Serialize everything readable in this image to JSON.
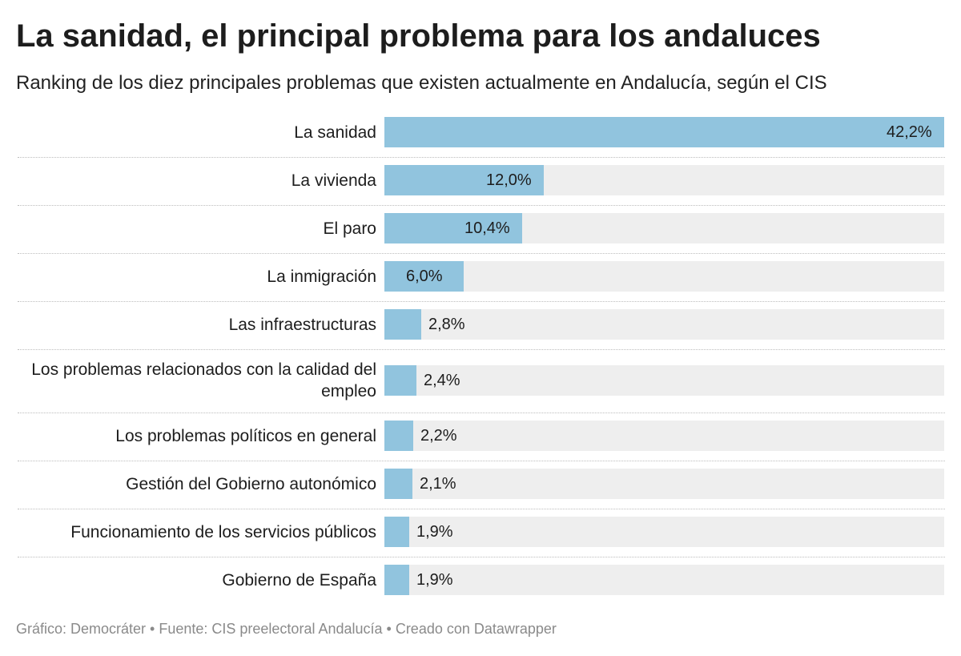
{
  "chart_data": {
    "type": "bar",
    "orientation": "horizontal",
    "title": "La sanidad, el principal problema para los andaluces",
    "subtitle": "Ranking de los diez principales problemas que existen actualmente en Andalucía, según el CIS",
    "categories": [
      "La sanidad",
      "La vivienda",
      "El paro",
      "La inmigración",
      "Las infraestructuras",
      "Los problemas relacionados con la calidad del empleo",
      "Los problemas políticos en general",
      "Gestión del Gobierno autonómico",
      "Funcionamiento de los servicios públicos",
      "Gobierno de España"
    ],
    "values": [
      42.2,
      12.0,
      10.4,
      6.0,
      2.8,
      2.4,
      2.2,
      2.1,
      1.9,
      1.9
    ],
    "value_labels": [
      "42,2%",
      "12,0%",
      "10,4%",
      "6,0%",
      "2,8%",
      "2,4%",
      "2,2%",
      "2,1%",
      "1,9%",
      "1,9%"
    ],
    "xlim": [
      0,
      42.2
    ],
    "bar_color": "#91c4de",
    "track_color": "#eeeeee",
    "grid": false
  },
  "footer": "Gráfico: Democráter • Fuente: CIS preelectoral Andalucía • Creado con Datawrapper"
}
